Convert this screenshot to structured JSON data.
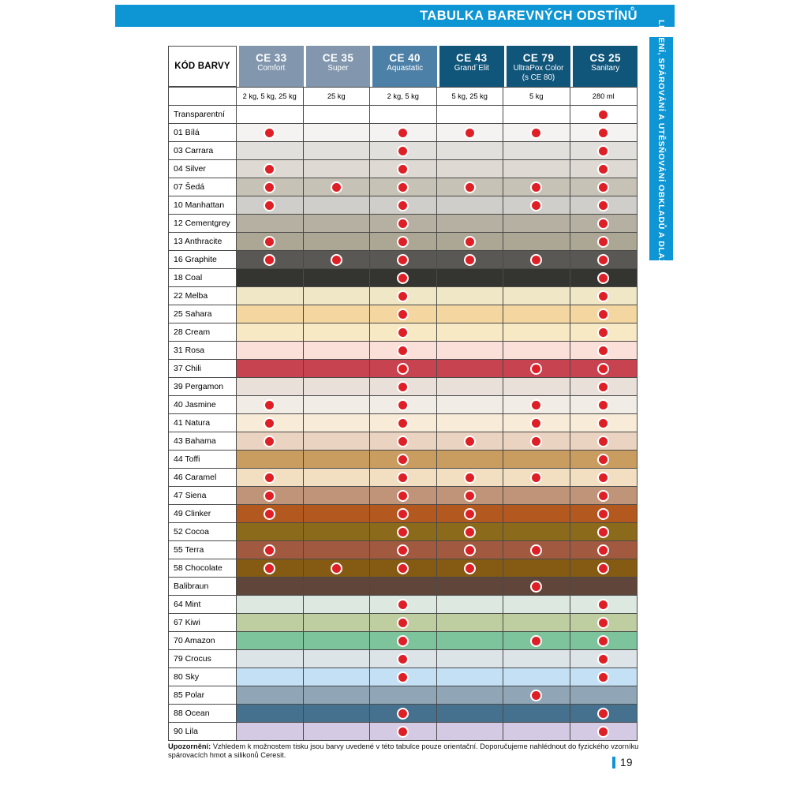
{
  "page": {
    "title": "TABULKA BAREVNÝCH ODSTÍNŮ",
    "side_tab": "LEPENÍ, SPÁROVÁNÍ A UTĚSŇOVÁNÍ OBKLADŮ A DLAŽBY",
    "note_label": "Upozornění:",
    "note_text": " Vzhledem k možnostem tisku jsou barvy uvedené v této tabulce pouze orientační. Doporučujeme nahlédnout do fyzického vzorníku spárovacích hmot a silikonů Ceresit.",
    "page_number": "19"
  },
  "colors": {
    "accent_cyan": "#0E95D4",
    "header_light_blue": "#8297AE",
    "header_mid_blue": "#4D80A6",
    "header_dark_teal": "#10557A",
    "dot_red": "#DE1F26",
    "grid_border": "#4A4A4A"
  },
  "table": {
    "code_header": "KÓD BARVY",
    "products": [
      {
        "code": "CE 33",
        "name": "Comfort",
        "pack": "2 kg, 5 kg, 25 kg",
        "tone": "light"
      },
      {
        "code": "CE 35",
        "name": "Super",
        "pack": "25 kg",
        "tone": "light"
      },
      {
        "code": "CE 40",
        "name": "Aquastatic",
        "pack": "2 kg, 5 kg",
        "tone": "mid"
      },
      {
        "code": "CE 43",
        "name": "Grand´Elit",
        "pack": "5 kg, 25 kg",
        "tone": "dark"
      },
      {
        "code": "CE 79",
        "name": "UltraPox Color",
        "name2": "(s CE 80)",
        "pack": "5 kg",
        "tone": "dark"
      },
      {
        "code": "CS 25",
        "name": "Sanitary",
        "pack": "280 ml",
        "tone": "dark"
      }
    ],
    "rows": [
      {
        "label": "Transparentní",
        "color": "#FFFFFF",
        "dots": [
          0,
          0,
          0,
          0,
          0,
          1
        ]
      },
      {
        "label": "01 Bílá",
        "color": "#F4F3F1",
        "dots": [
          1,
          0,
          1,
          1,
          1,
          1
        ]
      },
      {
        "label": "03 Carrara",
        "color": "#E2E0DC",
        "dots": [
          0,
          0,
          1,
          0,
          0,
          1
        ]
      },
      {
        "label": "04 Silver",
        "color": "#DEDAD3",
        "dots": [
          1,
          0,
          1,
          0,
          0,
          1
        ]
      },
      {
        "label": "07 Šedá",
        "color": "#C7C2B6",
        "dots": [
          1,
          1,
          1,
          1,
          1,
          1
        ]
      },
      {
        "label": "10 Manhattan",
        "color": "#CFCECA",
        "dots": [
          1,
          0,
          1,
          0,
          1,
          1
        ]
      },
      {
        "label": "12 Cementgrey",
        "color": "#B6B0A3",
        "dots": [
          0,
          0,
          1,
          0,
          0,
          1
        ]
      },
      {
        "label": "13 Anthracite",
        "color": "#ACA794",
        "dots": [
          1,
          0,
          1,
          1,
          0,
          1
        ]
      },
      {
        "label": "16 Graphite",
        "color": "#5A5855",
        "dots": [
          1,
          1,
          1,
          1,
          1,
          1
        ]
      },
      {
        "label": "18 Coal",
        "color": "#343430",
        "dots": [
          0,
          0,
          1,
          0,
          0,
          1
        ]
      },
      {
        "label": "22 Melba",
        "color": "#F0E7C6",
        "dots": [
          0,
          0,
          1,
          0,
          0,
          1
        ]
      },
      {
        "label": "25 Sahara",
        "color": "#F3D6A0",
        "dots": [
          0,
          0,
          1,
          0,
          0,
          1
        ]
      },
      {
        "label": "28 Cream",
        "color": "#F8E9C5",
        "dots": [
          0,
          0,
          1,
          0,
          0,
          1
        ]
      },
      {
        "label": "31 Rosa",
        "color": "#FBE0DA",
        "dots": [
          0,
          0,
          1,
          0,
          0,
          1
        ]
      },
      {
        "label": "37 Chili",
        "color": "#C84350",
        "dots": [
          0,
          0,
          1,
          0,
          1,
          1
        ]
      },
      {
        "label": "39 Pergamon",
        "color": "#E9E0D9",
        "dots": [
          0,
          0,
          1,
          0,
          0,
          1
        ]
      },
      {
        "label": "40 Jasmine",
        "color": "#F1ECE5",
        "dots": [
          1,
          0,
          1,
          0,
          1,
          1
        ]
      },
      {
        "label": "41 Natura",
        "color": "#F8ECD8",
        "dots": [
          1,
          0,
          1,
          0,
          1,
          1
        ]
      },
      {
        "label": "43 Bahama",
        "color": "#EAD3C1",
        "dots": [
          1,
          0,
          1,
          1,
          1,
          1
        ]
      },
      {
        "label": "44 Toffi",
        "color": "#C99C60",
        "dots": [
          0,
          0,
          1,
          0,
          0,
          1
        ]
      },
      {
        "label": "46 Caramel",
        "color": "#F2DFC1",
        "dots": [
          1,
          0,
          1,
          1,
          1,
          1
        ]
      },
      {
        "label": "47 Siena",
        "color": "#C09478",
        "dots": [
          1,
          0,
          1,
          1,
          0,
          1
        ]
      },
      {
        "label": "49 Clinker",
        "color": "#B3581E",
        "dots": [
          1,
          0,
          1,
          1,
          0,
          1
        ]
      },
      {
        "label": "52 Cocoa",
        "color": "#8C6A1C",
        "dots": [
          0,
          0,
          1,
          1,
          0,
          1
        ]
      },
      {
        "label": "55 Terra",
        "color": "#A15A40",
        "dots": [
          1,
          0,
          1,
          1,
          1,
          1
        ]
      },
      {
        "label": "58 Chocolate",
        "color": "#855A13",
        "dots": [
          1,
          1,
          1,
          1,
          0,
          1
        ]
      },
      {
        "label": "Balibraun",
        "color": "#5F453A",
        "dots": [
          0,
          0,
          0,
          0,
          1,
          0
        ]
      },
      {
        "label": "64 Mint",
        "color": "#DCE8E0",
        "dots": [
          0,
          0,
          1,
          0,
          0,
          1
        ]
      },
      {
        "label": "67 Kiwi",
        "color": "#BFCEA0",
        "dots": [
          0,
          0,
          1,
          0,
          0,
          1
        ]
      },
      {
        "label": "70 Amazon",
        "color": "#7DC49D",
        "dots": [
          0,
          0,
          1,
          0,
          1,
          1
        ]
      },
      {
        "label": "79 Crocus",
        "color": "#DDE4E8",
        "dots": [
          0,
          0,
          1,
          0,
          0,
          1
        ]
      },
      {
        "label": "80 Sky",
        "color": "#C4E0F4",
        "dots": [
          0,
          0,
          1,
          0,
          0,
          1
        ]
      },
      {
        "label": "85 Polar",
        "color": "#90A6B6",
        "dots": [
          0,
          0,
          0,
          0,
          1,
          0
        ]
      },
      {
        "label": "88 Ocean",
        "color": "#45718F",
        "dots": [
          0,
          0,
          1,
          0,
          0,
          1
        ]
      },
      {
        "label": "90 Lila",
        "color": "#D4CAE3",
        "dots": [
          0,
          0,
          1,
          0,
          0,
          1
        ]
      }
    ]
  }
}
